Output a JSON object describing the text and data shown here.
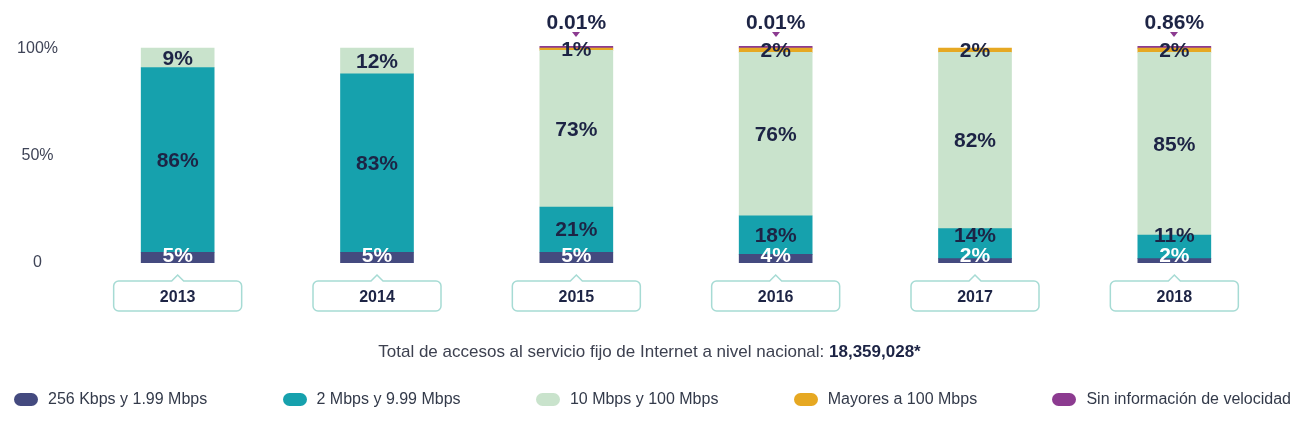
{
  "chart_data": {
    "type": "bar",
    "stacked": true,
    "categories": [
      "2013",
      "2014",
      "2015",
      "2016",
      "2017",
      "2018"
    ],
    "series": [
      {
        "name": "256 Kbps y 1.99 Mbps",
        "color": "#444a7f",
        "values": [
          5,
          5,
          5,
          4,
          2,
          2
        ],
        "value_labels": [
          "5%",
          "5%",
          "5%",
          "4%",
          "2%",
          "2%"
        ]
      },
      {
        "name": "2 Mbps y 9.99 Mbps",
        "color": "#16a1ad",
        "values": [
          86,
          83,
          21,
          18,
          14,
          11
        ],
        "value_labels": [
          "86%",
          "83%",
          "21%",
          "18%",
          "14%",
          "11%"
        ]
      },
      {
        "name": "10 Mbps y 100 Mbps",
        "color": "#c9e3cc",
        "values": [
          9,
          12,
          73,
          76,
          82,
          85
        ],
        "value_labels": [
          "9%",
          "12%",
          "73%",
          "76%",
          "82%",
          "85%"
        ]
      },
      {
        "name": "Mayores a 100 Mbps",
        "color": "#e6a822",
        "values": [
          null,
          null,
          1,
          2,
          2,
          2
        ],
        "value_labels": [
          null,
          null,
          "1%",
          "2%",
          "2%",
          "2%"
        ]
      },
      {
        "name": "Sin información de velocidad",
        "color": "#8c3b90",
        "values": [
          null,
          null,
          0.01,
          0.01,
          null,
          0.86
        ],
        "value_labels": [
          null,
          null,
          "0.01%",
          "0.01%",
          null,
          "0.86%"
        ]
      }
    ],
    "ylim": [
      0,
      101
    ],
    "yticks": [
      0,
      {
        "value": 50,
        "label": "50%"
      },
      {
        "value": 100,
        "label": "100%"
      }
    ],
    "grid": false,
    "legend": "bottom",
    "annotations": [
      "Total de accesos al servicio fijo de Internet a nivel nacional: 18,359,028*"
    ]
  }
}
